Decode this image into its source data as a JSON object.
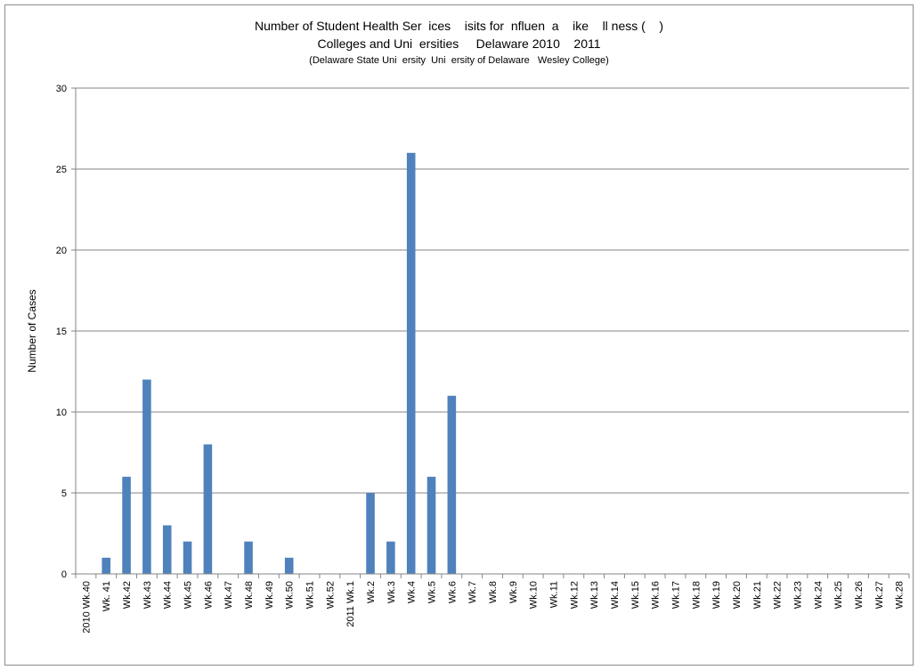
{
  "chart_data": {
    "type": "bar",
    "title": "Number of Student Health Ser  ices    isits for  nfluen  a    ike    ll ness (    )",
    "subtitle": "Colleges and Uni  ersities     Delaware 2010    2011",
    "note": "(Delaware State Uni  ersity  Uni  ersity of Delaware   Wesley College)",
    "ylabel": "Number of Cases",
    "xlabel": "",
    "ylim": [
      0,
      30
    ],
    "yticks": [
      0,
      5,
      10,
      15,
      20,
      25,
      30
    ],
    "grid": true,
    "legend": "none",
    "bar_color": "#4f81bd",
    "categories": [
      "2010  Wk.40",
      "Wk. 41",
      "Wk.42",
      "Wk.43",
      "Wk.44",
      "Wk.45",
      "Wk.46",
      "Wk.47",
      "Wk.48",
      "Wk.49",
      "Wk.50",
      "Wk.51",
      "Wk.52",
      "2011  Wk.1",
      "Wk.2",
      "Wk.3",
      "Wk.4",
      "Wk.5",
      "Wk.6",
      "Wk.7",
      "Wk.8",
      "Wk.9",
      "Wk.10",
      "Wk.11",
      "Wk.12",
      "Wk.13",
      "Wk.14",
      "Wk.15",
      "Wk.16",
      "Wk.17",
      "Wk.18",
      "Wk.19",
      "Wk.20",
      "Wk.21",
      "Wk.22",
      "Wk.23",
      "Wk.24",
      "Wk.25",
      "Wk.26",
      "Wk.27",
      "Wk.28"
    ],
    "values": [
      0,
      1,
      6,
      12,
      3,
      2,
      8,
      0,
      2,
      0,
      1,
      0,
      0,
      0,
      5,
      2,
      26,
      6,
      11,
      0,
      0,
      0,
      0,
      0,
      0,
      0,
      0,
      0,
      0,
      0,
      0,
      0,
      0,
      0,
      0,
      0,
      0,
      0,
      0,
      0,
      0
    ]
  }
}
